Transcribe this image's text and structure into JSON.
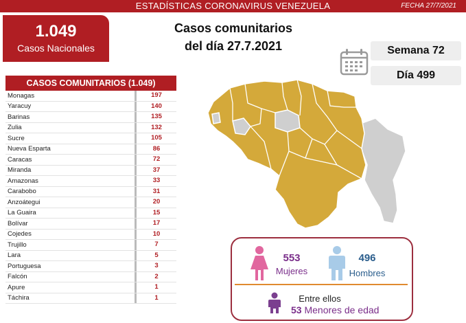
{
  "header": {
    "title": "ESTADÍSTICAS CORONAVIRUS VENEZUELA",
    "date": "FECHA 27/7/2021"
  },
  "national": {
    "count": "1.049",
    "label": "Casos Nacionales"
  },
  "heading": {
    "line1": "Casos comunitarios",
    "line2": "del día 27.7.2021"
  },
  "calendar": {
    "icon": "calendar-icon"
  },
  "week_label": "Semana 72",
  "day_label": "Día 499",
  "table": {
    "header": "CASOS COMUNITARIOS (1.049)",
    "rows": [
      {
        "state": "Monagas",
        "cases": "197"
      },
      {
        "state": "Yaracuy",
        "cases": "140"
      },
      {
        "state": "Barinas",
        "cases": "135"
      },
      {
        "state": "Zulia",
        "cases": "132"
      },
      {
        "state": "Sucre",
        "cases": "105"
      },
      {
        "state": "Nueva Esparta",
        "cases": "86"
      },
      {
        "state": "Caracas",
        "cases": "72"
      },
      {
        "state": "Miranda",
        "cases": "37"
      },
      {
        "state": "Amazonas",
        "cases": "33"
      },
      {
        "state": "Carabobo",
        "cases": "31"
      },
      {
        "state": "Anzoátegui",
        "cases": "20"
      },
      {
        "state": "La Guaira",
        "cases": "15"
      },
      {
        "state": "Bolívar",
        "cases": "17"
      },
      {
        "state": "Cojedes",
        "cases": "10"
      },
      {
        "state": "Trujillo",
        "cases": "7"
      },
      {
        "state": "Lara",
        "cases": "5"
      },
      {
        "state": "Portuguesa",
        "cases": "3"
      },
      {
        "state": "Falcón",
        "cases": "2"
      },
      {
        "state": "Apure",
        "cases": "1"
      },
      {
        "state": "Táchira",
        "cases": "1"
      }
    ]
  },
  "map": {
    "affected_color": "#d4a93a",
    "unaffected_color": "#cfcfcf",
    "icon": "venezuela-map"
  },
  "gender": {
    "women_count": "553",
    "women_label": "Mujeres",
    "men_count": "496",
    "men_label": "Hombres",
    "minors_intro": "Entre ellos",
    "minors_count": "53",
    "minors_label": "Menores de edad",
    "women_color": "#e1679f",
    "men_color": "#a8cbe8",
    "minors_color": "#7b3f8f",
    "accent_color": "#7a2e8a"
  }
}
